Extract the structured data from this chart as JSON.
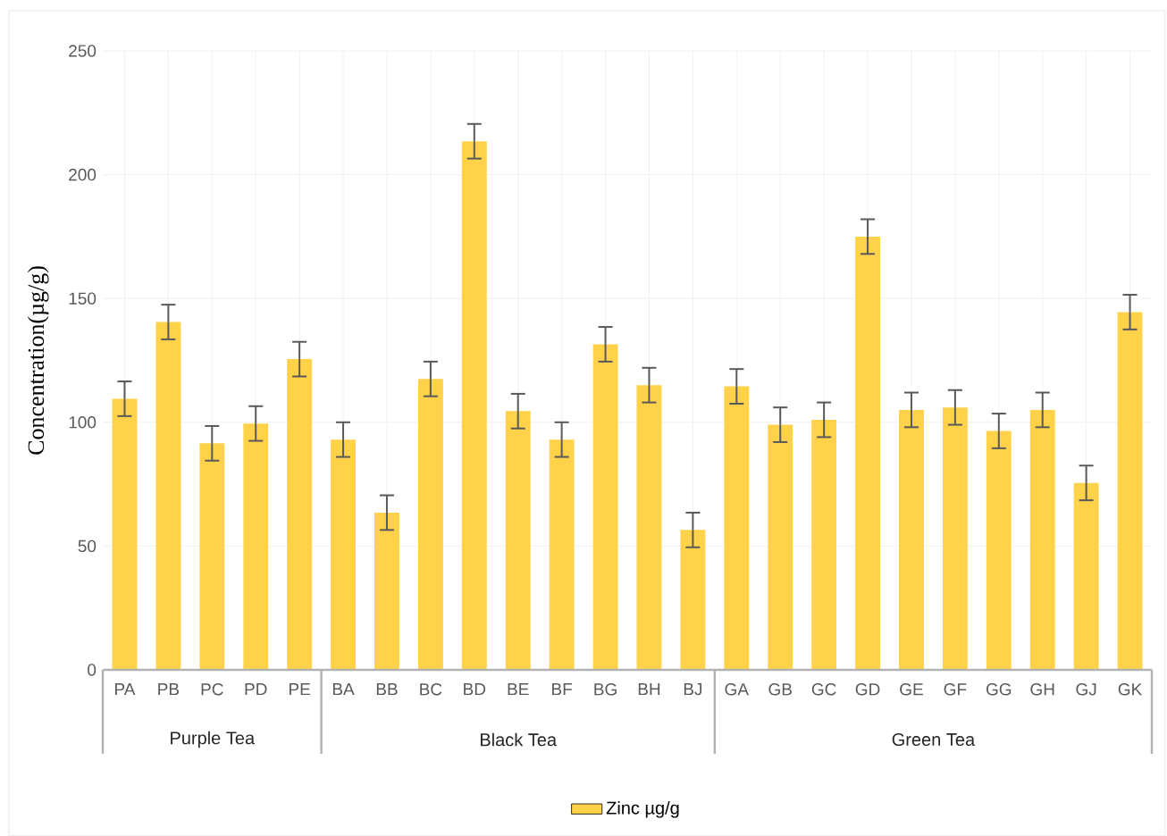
{
  "chart_data": {
    "type": "bar",
    "ylabel": "Concentration(µg/g)",
    "categories": [
      "PA",
      "PB",
      "PC",
      "PD",
      "PE",
      "BA",
      "BB",
      "BC",
      "BD",
      "BE",
      "BF",
      "BG",
      "BH",
      "BJ",
      "GA",
      "GB",
      "GC",
      "GD",
      "GE",
      "GF",
      "GG",
      "GH",
      "GJ",
      "GK"
    ],
    "series": [
      {
        "name": "Zinc µg/g",
        "color": "#ffd24a",
        "values": [
          109.5,
          140.5,
          91.5,
          99.5,
          125.5,
          93,
          63.5,
          117.5,
          213.5,
          104.5,
          93,
          131.5,
          115,
          56.5,
          114.5,
          99,
          101,
          175,
          105,
          106,
          96.5,
          105,
          75.5,
          144.5
        ],
        "errors": [
          7,
          7,
          7,
          7,
          7,
          7,
          7,
          7,
          7,
          7,
          7,
          7,
          7,
          7,
          7,
          7,
          7,
          7,
          7,
          7,
          7,
          7,
          7,
          7
        ]
      }
    ],
    "ylim": [
      0,
      250
    ],
    "yticks": [
      0,
      50,
      100,
      150,
      200,
      250
    ],
    "grid": true,
    "legend": "bottom",
    "annotations": [
      "Purple Tea",
      "Black Tea",
      "Green Tea"
    ]
  }
}
